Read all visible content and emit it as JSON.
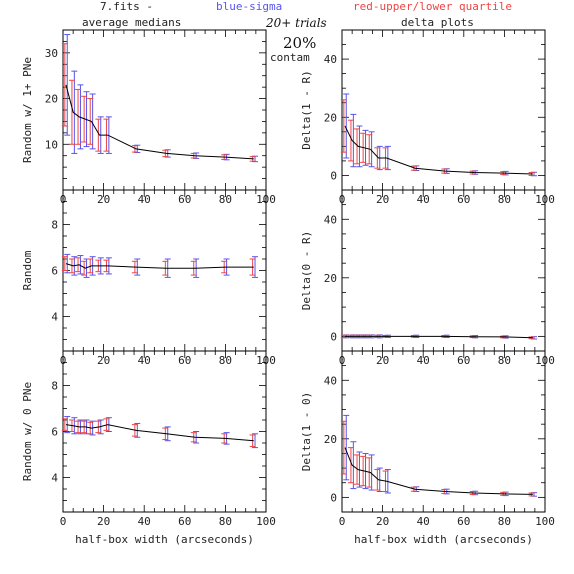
{
  "header": {
    "file_label": "7.fits  -",
    "blue_label": "blue-sigma",
    "red_label": "red-upper/lower quartile",
    "left_column_title": "average medians",
    "right_column_title": "delta plots",
    "trials_label": "20+ trials",
    "percent_label": "20%",
    "contam_label": "contam"
  },
  "colors": {
    "line": "#000000",
    "blue": "#5555ee",
    "red": "#ee4444"
  },
  "chart_data": [
    {
      "type": "line",
      "xlabel": "",
      "ylabel": "Random w/ 1+ PNe",
      "xlim": [
        0,
        100
      ],
      "ylim": [
        0,
        35
      ],
      "xticks": [
        0,
        20,
        40,
        60,
        80,
        100
      ],
      "yticks": [
        10,
        20,
        30
      ],
      "x": [
        1.5,
        5,
        8,
        11,
        14,
        18,
        22,
        36,
        51,
        65,
        80,
        94
      ],
      "y": [
        23,
        17,
        16,
        15.5,
        15,
        12,
        12,
        9,
        8,
        7.5,
        7.2,
        6.8
      ],
      "sigma": [
        11,
        9,
        7,
        6,
        6,
        4,
        4,
        0.8,
        0.8,
        0.6,
        0.6,
        0.6
      ],
      "quartile": [
        9,
        7,
        6,
        5,
        5,
        3.5,
        3.5,
        0.7,
        0.7,
        0.5,
        0.5,
        0.5
      ]
    },
    {
      "type": "line",
      "xlabel": "",
      "ylabel": "Delta(1 - R)",
      "xlim": [
        0,
        100
      ],
      "ylim": [
        -5,
        50
      ],
      "xticks": [
        0,
        20,
        40,
        60,
        80,
        100
      ],
      "yticks": [
        0,
        20,
        40
      ],
      "x": [
        1.5,
        5,
        8,
        11,
        14,
        18,
        22,
        36,
        51,
        65,
        80,
        94
      ],
      "y": [
        17,
        12,
        10,
        9.5,
        9,
        6,
        6,
        2.5,
        1.5,
        1,
        0.8,
        0.5
      ],
      "sigma": [
        11,
        9,
        7,
        6,
        6,
        4,
        4,
        0.8,
        0.8,
        0.6,
        0.6,
        0.6
      ],
      "quartile": [
        9,
        7,
        6,
        5,
        5,
        3.5,
        3.5,
        0.7,
        0.7,
        0.5,
        0.5,
        0.5
      ]
    },
    {
      "type": "line",
      "xlabel": "",
      "ylabel": "Random",
      "xlim": [
        0,
        100
      ],
      "ylim": [
        2.5,
        9.5
      ],
      "xticks": [
        0,
        20,
        40,
        60,
        80,
        100
      ],
      "yticks": [
        4,
        6,
        8
      ],
      "x": [
        1.5,
        5,
        8,
        11,
        14,
        18,
        22,
        36,
        51,
        65,
        80,
        94
      ],
      "y": [
        6.3,
        6.2,
        6.25,
        6.1,
        6.2,
        6.2,
        6.2,
        6.15,
        6.1,
        6.1,
        6.15,
        6.15
      ],
      "sigma": [
        0.4,
        0.4,
        0.4,
        0.4,
        0.4,
        0.35,
        0.35,
        0.35,
        0.4,
        0.4,
        0.35,
        0.45
      ],
      "quartile": [
        0.3,
        0.3,
        0.3,
        0.3,
        0.3,
        0.25,
        0.25,
        0.25,
        0.3,
        0.3,
        0.25,
        0.35
      ]
    },
    {
      "type": "line",
      "xlabel": "",
      "ylabel": "Delta(0 - R)",
      "xlim": [
        0,
        100
      ],
      "ylim": [
        -5,
        50
      ],
      "xticks": [
        0,
        20,
        40,
        60,
        80,
        100
      ],
      "yticks": [
        0,
        20,
        40
      ],
      "x": [
        1.5,
        5,
        8,
        11,
        14,
        18,
        22,
        36,
        51,
        65,
        80,
        94
      ],
      "y": [
        0,
        0,
        0,
        0,
        0,
        0,
        0,
        0,
        0,
        -0.1,
        -0.2,
        -0.5
      ],
      "sigma": [
        0.5,
        0.5,
        0.5,
        0.5,
        0.5,
        0.5,
        0.4,
        0.4,
        0.4,
        0.4,
        0.4,
        0.4
      ],
      "quartile": [
        0.4,
        0.4,
        0.4,
        0.4,
        0.4,
        0.4,
        0.3,
        0.3,
        0.3,
        0.3,
        0.3,
        0.3
      ]
    },
    {
      "type": "line",
      "xlabel": "half-box width (arcseconds)",
      "ylabel": "Random w/ 0 PNe",
      "xlim": [
        0,
        100
      ],
      "ylim": [
        2.5,
        9.5
      ],
      "xticks": [
        0,
        20,
        40,
        60,
        80,
        100
      ],
      "yticks": [
        4,
        6,
        8
      ],
      "x": [
        1.5,
        5,
        8,
        11,
        14,
        18,
        22,
        36,
        51,
        65,
        80,
        94
      ],
      "y": [
        6.3,
        6.25,
        6.2,
        6.2,
        6.15,
        6.2,
        6.3,
        6.05,
        5.9,
        5.75,
        5.7,
        5.6
      ],
      "sigma": [
        0.35,
        0.35,
        0.3,
        0.3,
        0.3,
        0.3,
        0.3,
        0.3,
        0.3,
        0.25,
        0.25,
        0.3
      ],
      "quartile": [
        0.25,
        0.25,
        0.25,
        0.25,
        0.25,
        0.25,
        0.25,
        0.25,
        0.25,
        0.2,
        0.2,
        0.25
      ]
    },
    {
      "type": "line",
      "xlabel": "half-box width (arcseconds)",
      "ylabel": "Delta(1 - 0)",
      "xlim": [
        0,
        100
      ],
      "ylim": [
        -5,
        50
      ],
      "xticks": [
        0,
        20,
        40,
        60,
        80,
        100
      ],
      "yticks": [
        0,
        20,
        40
      ],
      "x": [
        1.5,
        5,
        8,
        11,
        14,
        18,
        22,
        36,
        51,
        65,
        80,
        94
      ],
      "y": [
        17,
        11,
        9.5,
        9,
        8.5,
        6,
        5.5,
        2.8,
        2,
        1.5,
        1.2,
        1
      ],
      "sigma": [
        11,
        8,
        6,
        6,
        6,
        4,
        4,
        0.8,
        0.8,
        0.6,
        0.6,
        0.6
      ],
      "quartile": [
        9,
        6,
        5,
        5,
        5,
        3.5,
        3.5,
        0.7,
        0.7,
        0.5,
        0.5,
        0.5
      ]
    }
  ]
}
